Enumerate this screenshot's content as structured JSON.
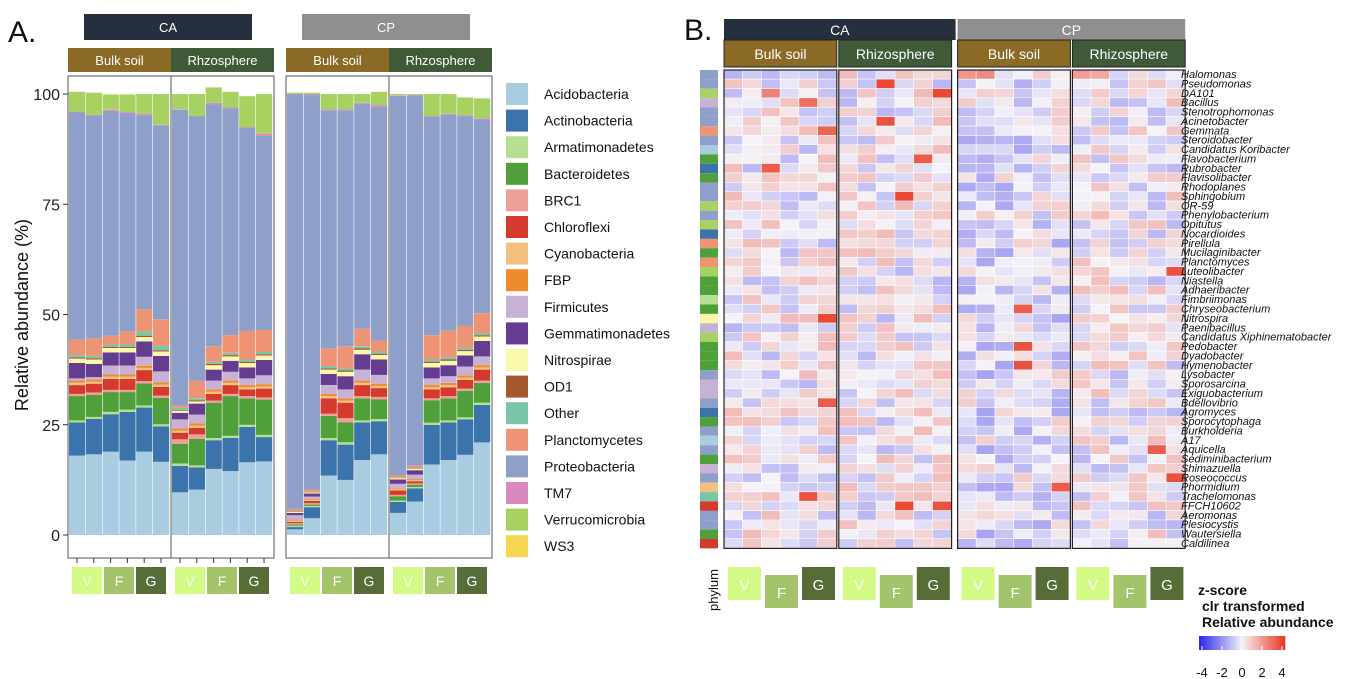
{
  "panel_a": {
    "label": "A.",
    "strips": {
      "CA": "CA",
      "CP": "CP",
      "bulk": "Bulk soil",
      "rhizo": "Rhzosphere"
    },
    "ylabel": "Relative abundance (%)",
    "yticks": [
      "0",
      "25",
      "50",
      "75",
      "100"
    ],
    "treatments": [
      "V",
      "F",
      "G"
    ]
  },
  "panel_b": {
    "label": "B.",
    "strips": {
      "CA": "CA",
      "CP": "CP",
      "bulk": "Bulk soil",
      "rhizo": "Rhizosphere"
    },
    "phylum_label": "phylum",
    "treatments": [
      "V",
      "F",
      "G"
    ],
    "legend_title": [
      "z-score",
      "clr transformed",
      "Relative abundance"
    ],
    "legend_ticks": [
      "-4",
      "-2",
      "0",
      "2",
      "4"
    ]
  },
  "colors": {
    "strip_ca": "#252f3d",
    "strip_cp": "#8f8f8f",
    "strip_bulk": "#8b6a25",
    "strip_rhizo": "#3e5a37",
    "V": "#d3fa84",
    "F": "#a3c46a",
    "G": "#566d38"
  },
  "chart_data": [
    {
      "type": "bar",
      "stacked": true,
      "title": "",
      "xlabel": "",
      "ylabel": "Relative abundance (%)",
      "ylim": [
        0,
        100
      ],
      "legend_position": "right",
      "phyla": [
        "Acidobacteria",
        "Actinobacteria",
        "Armatimonadetes",
        "Bacteroidetes",
        "BRC1",
        "Chloroflexi",
        "Cyanobacteria",
        "FBP",
        "Firmicutes",
        "Gemmatimonadetes",
        "Nitrospirae",
        "OD1",
        "Other",
        "Planctomycetes",
        "Proteobacteria",
        "TM7",
        "Verrucomicrobia",
        "WS3"
      ],
      "phylum_colors": [
        "#a9cce1",
        "#3b73ad",
        "#b6df93",
        "#4f9f3a",
        "#ef9e9a",
        "#d53b2d",
        "#f5c07f",
        "#ef8a2f",
        "#c7b2d6",
        "#643d91",
        "#fcf8ab",
        "#a5582d",
        "#7ac5a5",
        "#ee9374",
        "#8e9fc9",
        "#d989be",
        "#a7d161",
        "#f4d650"
      ],
      "samples": [
        {
          "site": "CA",
          "compartment": "Bulk soil",
          "treatment": "V",
          "values": [
            18.0,
            7.5,
            0.5,
            5.5,
            0.5,
            2.0,
            0.5,
            0.5,
            0.5,
            3.5,
            1.0,
            0.3,
            0.5,
            3.5,
            51.5,
            0.2,
            4.5,
            0.0
          ]
        },
        {
          "site": "CA",
          "compartment": "Bulk soil",
          "treatment": "V",
          "values": [
            18.3,
            8.0,
            0.5,
            5.0,
            0.5,
            2.0,
            0.5,
            0.5,
            0.5,
            3.0,
            1.0,
            0.3,
            0.5,
            4.0,
            50.5,
            0.2,
            5.0,
            0.0
          ]
        },
        {
          "site": "CA",
          "compartment": "Bulk soil",
          "treatment": "F",
          "values": [
            18.9,
            8.5,
            0.5,
            4.5,
            0.5,
            2.5,
            0.5,
            0.5,
            2.0,
            3.0,
            1.0,
            0.3,
            0.5,
            2.0,
            51.0,
            0.2,
            3.5,
            0.0
          ]
        },
        {
          "site": "CA",
          "compartment": "Bulk soil",
          "treatment": "F",
          "values": [
            16.9,
            11.0,
            0.5,
            4.0,
            0.5,
            2.5,
            0.5,
            0.5,
            2.0,
            3.0,
            1.0,
            0.3,
            0.5,
            3.0,
            49.5,
            0.2,
            4.0,
            0.0
          ]
        },
        {
          "site": "CA",
          "compartment": "Bulk soil",
          "treatment": "G",
          "values": [
            18.9,
            10.0,
            0.5,
            5.0,
            0.5,
            2.5,
            0.5,
            0.5,
            2.0,
            3.5,
            1.0,
            0.3,
            1.0,
            5.0,
            44.0,
            0.3,
            4.5,
            0.0
          ]
        },
        {
          "site": "CA",
          "compartment": "Bulk soil",
          "treatment": "G",
          "values": [
            16.6,
            8.0,
            0.5,
            6.0,
            0.5,
            2.0,
            0.5,
            0.5,
            2.5,
            3.5,
            1.0,
            0.3,
            1.0,
            6.0,
            44.0,
            0.1,
            7.0,
            0.0
          ]
        },
        {
          "site": "CA",
          "compartment": "Rhizosphere",
          "treatment": "V",
          "values": [
            9.7,
            6.0,
            0.5,
            4.5,
            1.0,
            1.5,
            0.5,
            0.5,
            2.0,
            1.5,
            0.5,
            0.2,
            0.5,
            0.5,
            67.0,
            0.1,
            3.5,
            0.0
          ]
        },
        {
          "site": "CA",
          "compartment": "Rhizosphere",
          "treatment": "V",
          "values": [
            10.3,
            5.0,
            0.5,
            6.0,
            1.0,
            1.5,
            0.5,
            0.5,
            2.0,
            2.5,
            0.5,
            0.2,
            0.5,
            4.0,
            60.0,
            0.0,
            5.0,
            0.0
          ]
        },
        {
          "site": "CA",
          "compartment": "Rhizosphere",
          "treatment": "F",
          "values": [
            15.0,
            6.5,
            0.5,
            8.0,
            0.5,
            1.5,
            0.5,
            0.5,
            2.0,
            2.5,
            1.0,
            0.3,
            0.5,
            3.5,
            54.9,
            0.3,
            3.5,
            0.0
          ]
        },
        {
          "site": "CA",
          "compartment": "Rhizosphere",
          "treatment": "F",
          "values": [
            14.5,
            7.5,
            0.5,
            9.0,
            0.5,
            2.0,
            0.5,
            0.5,
            2.0,
            2.5,
            1.0,
            0.3,
            0.5,
            4.0,
            51.5,
            0.2,
            3.5,
            0.0
          ]
        },
        {
          "site": "CA",
          "compartment": "Rhizosphere",
          "treatment": "G",
          "values": [
            16.5,
            8.0,
            0.5,
            6.0,
            0.5,
            1.5,
            0.5,
            0.5,
            1.5,
            2.5,
            1.0,
            0.3,
            0.5,
            6.5,
            46.0,
            0.2,
            7.0,
            0.0
          ]
        },
        {
          "site": "CA",
          "compartment": "Rhizosphere",
          "treatment": "G",
          "values": [
            16.7,
            5.5,
            0.5,
            8.0,
            0.5,
            2.0,
            0.5,
            0.5,
            2.0,
            3.5,
            1.0,
            0.3,
            0.5,
            5.0,
            44.0,
            0.5,
            9.0,
            0.0
          ]
        },
        {
          "site": "CP",
          "compartment": "Bulk soil",
          "treatment": "V",
          "values": [
            1.3,
            0.5,
            0.3,
            0.3,
            0.3,
            0.3,
            0.3,
            0.2,
            1.0,
            0.5,
            0.2,
            0.1,
            0.1,
            0.5,
            94.0,
            0.1,
            0.3,
            0.0
          ]
        },
        {
          "site": "CP",
          "compartment": "Bulk soil",
          "treatment": "V",
          "values": [
            3.8,
            2.5,
            0.3,
            0.3,
            0.3,
            0.5,
            0.3,
            0.2,
            0.5,
            0.7,
            0.2,
            0.1,
            0.1,
            0.5,
            89.5,
            0.2,
            0.3,
            0.0
          ]
        },
        {
          "site": "CP",
          "compartment": "Bulk soil",
          "treatment": "F",
          "values": [
            13.5,
            8.0,
            0.5,
            5.0,
            0.5,
            3.5,
            0.5,
            0.5,
            2.0,
            2.5,
            1.0,
            0.3,
            0.5,
            4.0,
            54.0,
            0.2,
            3.5,
            0.0
          ]
        },
        {
          "site": "CP",
          "compartment": "Bulk soil",
          "treatment": "F",
          "values": [
            12.5,
            8.0,
            0.5,
            4.5,
            1.0,
            3.5,
            0.5,
            0.5,
            2.0,
            3.0,
            1.0,
            0.3,
            0.5,
            5.0,
            53.5,
            0.2,
            3.5,
            0.0
          ]
        },
        {
          "site": "CP",
          "compartment": "Bulk soil",
          "treatment": "G",
          "values": [
            17.0,
            8.5,
            0.5,
            5.0,
            0.5,
            2.5,
            0.5,
            0.5,
            2.5,
            3.5,
            1.0,
            0.3,
            0.5,
            4.0,
            51.0,
            0.2,
            2.0,
            0.0
          ]
        },
        {
          "site": "CP",
          "compartment": "Bulk soil",
          "treatment": "G",
          "values": [
            18.3,
            7.5,
            0.5,
            4.5,
            0.5,
            2.0,
            0.5,
            0.5,
            2.0,
            3.5,
            1.0,
            0.3,
            0.5,
            2.5,
            53.0,
            0.4,
            3.0,
            0.0
          ]
        },
        {
          "site": "CP",
          "compartment": "Rhizosphere",
          "treatment": "V",
          "values": [
            5.0,
            2.5,
            0.3,
            1.0,
            0.3,
            1.0,
            0.3,
            0.2,
            1.0,
            1.0,
            0.3,
            0.1,
            0.1,
            0.5,
            86.0,
            0.1,
            0.3,
            0.0
          ]
        },
        {
          "site": "CP",
          "compartment": "Rhizosphere",
          "treatment": "V",
          "values": [
            7.6,
            3.0,
            0.3,
            0.5,
            0.3,
            0.5,
            0.3,
            0.2,
            1.0,
            1.0,
            0.3,
            0.1,
            0.1,
            0.5,
            84.0,
            0.1,
            0.2,
            0.0
          ]
        },
        {
          "site": "CP",
          "compartment": "Rhizosphere",
          "treatment": "F",
          "values": [
            16.0,
            9.0,
            0.5,
            5.0,
            0.5,
            2.0,
            0.5,
            0.5,
            1.5,
            2.5,
            1.0,
            0.3,
            0.5,
            5.5,
            49.5,
            0.2,
            5.0,
            0.0
          ]
        },
        {
          "site": "CP",
          "compartment": "Rhizosphere",
          "treatment": "F",
          "values": [
            17.0,
            8.5,
            0.5,
            5.0,
            0.5,
            2.0,
            0.5,
            0.5,
            1.5,
            2.5,
            1.0,
            0.3,
            0.5,
            6.0,
            49.0,
            0.2,
            4.5,
            0.0
          ]
        },
        {
          "site": "CP",
          "compartment": "Rhizosphere",
          "treatment": "G",
          "values": [
            18.2,
            8.0,
            0.5,
            6.0,
            0.5,
            2.0,
            0.5,
            0.5,
            2.0,
            2.5,
            1.0,
            0.3,
            0.5,
            5.0,
            47.5,
            0.2,
            4.0,
            0.0
          ]
        },
        {
          "site": "CP",
          "compartment": "Rhizosphere",
          "treatment": "G",
          "values": [
            21.0,
            8.5,
            0.5,
            4.5,
            0.5,
            2.5,
            0.5,
            0.5,
            2.0,
            3.5,
            1.0,
            0.3,
            0.5,
            4.5,
            44.0,
            0.2,
            4.5,
            0.0
          ]
        }
      ]
    },
    {
      "type": "heatmap",
      "title": "",
      "color_scale": {
        "min": -4,
        "max": 4,
        "low": "#2a25e8",
        "mid": "#f5f3f8",
        "high": "#e8361f"
      },
      "genera": [
        "Halomonas",
        "Pseudomonas",
        "DA101",
        "Bacillus",
        "Stenotrophomonas",
        "Acinetobacter",
        "Gemmata",
        "Steroidobacter",
        "Candidatus Koribacter",
        "Flavobacterium",
        "Rubrobacter",
        "Flavisolibacter",
        "Rhodoplanes",
        "Sphingobium",
        "OR-59",
        "Phenylobacterium",
        "Opitutus",
        "Nocardioides",
        "Pirellula",
        "Mucilaginibacter",
        "Planctomyces",
        "Luteolibacter",
        "Niastella",
        "Adhaeribacter",
        "Fimbriimonas",
        "Chryseobacterium",
        "Nitrospira",
        "Paenibacillus",
        "Candidatus Xiphinematobacter",
        "Pedobacter",
        "Dyadobacter",
        "Hymenobacter",
        "Lysobacter",
        "Sporosarcina",
        "Exiguobacterium",
        "Bdellovibrio",
        "Agromyces",
        "Sporocytophaga",
        "Burkholderia",
        "A17",
        "Aquicella",
        "Sediminibacterium",
        "Shimazuella",
        "Roseococcus",
        "Phormidium",
        "Trachelomonas",
        "FFCH10602",
        "Aeromonas",
        "Plesiocystis",
        "Wautersiella",
        "Caldilinea"
      ],
      "phylum": [
        "Proteobacteria",
        "Proteobacteria",
        "Verrucomicrobia",
        "Firmicutes",
        "Proteobacteria",
        "Proteobacteria",
        "Planctomycetes",
        "Proteobacteria",
        "Acidobacteria",
        "Bacteroidetes",
        "Actinobacteria",
        "Bacteroidetes",
        "Proteobacteria",
        "Proteobacteria",
        "Verrucomicrobia",
        "Proteobacteria",
        "Verrucomicrobia",
        "Actinobacteria",
        "Planctomycetes",
        "Bacteroidetes",
        "Planctomycetes",
        "Verrucomicrobia",
        "Bacteroidetes",
        "Bacteroidetes",
        "Armatimonadetes",
        "Bacteroidetes",
        "Nitrospirae",
        "Firmicutes",
        "Verrucomicrobia",
        "Bacteroidetes",
        "Bacteroidetes",
        "Bacteroidetes",
        "Proteobacteria",
        "Firmicutes",
        "Firmicutes",
        "Proteobacteria",
        "Actinobacteria",
        "Bacteroidetes",
        "Proteobacteria",
        "Acidobacteria",
        "Proteobacteria",
        "Bacteroidetes",
        "Firmicutes",
        "Proteobacteria",
        "Cyanobacteria",
        "Other",
        "Chloroflexi",
        "Proteobacteria",
        "Proteobacteria",
        "Bacteroidetes",
        "Chloroflexi"
      ],
      "columns": [
        {
          "site": "CA",
          "compartment": "Bulk soil",
          "treatments": [
            "V",
            "V",
            "F",
            "F",
            "G",
            "G"
          ]
        },
        {
          "site": "CA",
          "compartment": "Rhizosphere",
          "treatments": [
            "V",
            "V",
            "F",
            "F",
            "G",
            "G"
          ]
        },
        {
          "site": "CP",
          "compartment": "Bulk soil",
          "treatments": [
            "V",
            "V",
            "F",
            "F",
            "G",
            "G"
          ]
        },
        {
          "site": "CP",
          "compartment": "Rhizosphere",
          "treatments": [
            "V",
            "V",
            "F",
            "F",
            "G",
            "G"
          ]
        }
      ],
      "hot_cells": [
        {
          "genus": "Halomonas",
          "col": 12,
          "z": 2.0
        },
        {
          "genus": "Halomonas",
          "col": 13,
          "z": 2.2
        },
        {
          "genus": "Halomonas",
          "col": 18,
          "z": 1.8
        },
        {
          "genus": "Halomonas",
          "col": 19,
          "z": 1.6
        },
        {
          "genus": "Pseudomonas",
          "col": 8,
          "z": 3.6
        },
        {
          "genus": "DA101",
          "col": 2,
          "z": 2.4
        },
        {
          "genus": "DA101",
          "col": 11,
          "z": 3.6
        },
        {
          "genus": "Bacillus",
          "col": 4,
          "z": 2.8
        },
        {
          "genus": "Acinetobacter",
          "col": 8,
          "z": 3.4
        },
        {
          "genus": "Gemmata",
          "col": 5,
          "z": 3.0
        },
        {
          "genus": "Flavobacterium",
          "col": 10,
          "z": 3.2
        },
        {
          "genus": "Rubrobacter",
          "col": 2,
          "z": 3.2
        },
        {
          "genus": "Sphingobium",
          "col": 9,
          "z": 3.6
        },
        {
          "genus": "Luteolibacter",
          "col": 23,
          "z": 3.4
        },
        {
          "genus": "Chryseobacterium",
          "col": 15,
          "z": 3.2
        },
        {
          "genus": "Nitrospira",
          "col": 5,
          "z": 3.6
        },
        {
          "genus": "Pedobacter",
          "col": 15,
          "z": 3.4
        },
        {
          "genus": "Hymenobacter",
          "col": 15,
          "z": 3.4
        },
        {
          "genus": "Bdellovibrio",
          "col": 5,
          "z": 3.2
        },
        {
          "genus": "Aquicella",
          "col": 22,
          "z": 3.2
        },
        {
          "genus": "Roseococcus",
          "col": 23,
          "z": 3.4
        },
        {
          "genus": "Phormidium",
          "col": 17,
          "z": 3.2
        },
        {
          "genus": "Trachelomonas",
          "col": 4,
          "z": 3.4
        },
        {
          "genus": "FFCH10602",
          "col": 9,
          "z": 3.6
        },
        {
          "genus": "FFCH10602",
          "col": 11,
          "z": 3.4
        }
      ]
    }
  ]
}
